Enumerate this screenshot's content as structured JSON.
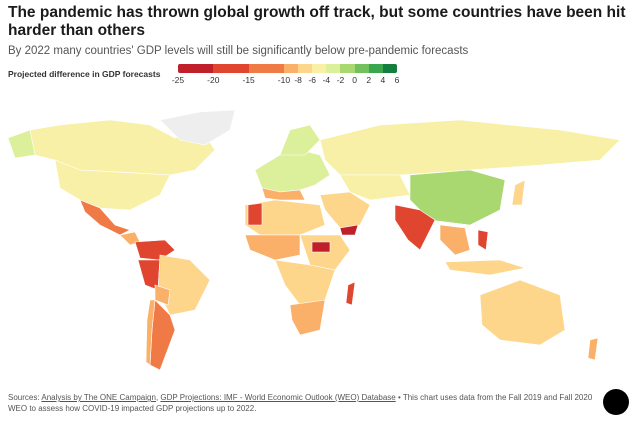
{
  "title": "The pandemic has thrown global growth off track, but some countries have been hit harder than others",
  "subtitle": "By 2022 many countries' GDP levels will still be significantly below pre-pandemic forecasts",
  "legend": {
    "label": "Projected difference in GDP forecasts",
    "ticks": [
      "-25",
      "-20",
      "-15",
      "-10",
      "-8",
      "-6",
      "-4",
      "-2",
      "0",
      "2",
      "4",
      "6"
    ],
    "bins": [
      {
        "from": -25,
        "to": -20,
        "color": "#c0202a"
      },
      {
        "from": -20,
        "to": -15,
        "color": "#e0452f"
      },
      {
        "from": -15,
        "to": -10,
        "color": "#f07a45"
      },
      {
        "from": -10,
        "to": -8,
        "color": "#fbb06a"
      },
      {
        "from": -8,
        "to": -6,
        "color": "#fdd68c"
      },
      {
        "from": -6,
        "to": -4,
        "color": "#f8f0a6"
      },
      {
        "from": -4,
        "to": -2,
        "color": "#dcef9a"
      },
      {
        "from": -2,
        "to": 0,
        "color": "#a9d870"
      },
      {
        "from": 0,
        "to": 2,
        "color": "#72c15e"
      },
      {
        "from": 2,
        "to": 4,
        "color": "#3aa64e"
      },
      {
        "from": 4,
        "to": 6,
        "color": "#137e3d"
      }
    ]
  },
  "footer": {
    "prefix": "Sources: ",
    "link1": "Analysis by The ONE Campaign",
    "sep": ", ",
    "link2": "GDP Projections: IMF - World Economic Outlook (WEO) Database",
    "text": " • This chart uses data from the Fall 2019 and Fall 2020 WEO to assess how COVID-19 impacted GDP projections up to 2022."
  },
  "logo": "ONE"
}
